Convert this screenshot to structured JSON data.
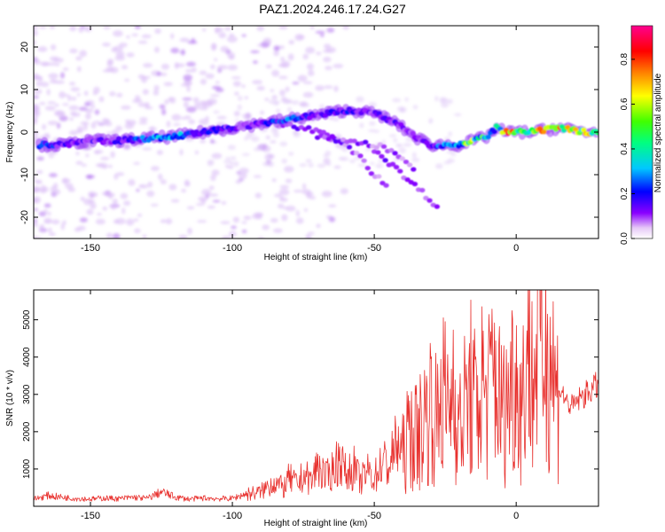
{
  "title": "PAZ1.2024.246.17.24.G27",
  "colors": {
    "snr_line": "#e8312e",
    "axis": "#000000",
    "spectrogram_low": "#e8c8f8",
    "spectrogram_colormap": [
      "#ffffff",
      "#e6c8f7",
      "#8a00ff",
      "#0000ff",
      "#00d9ff",
      "#00ff40",
      "#ffff00",
      "#ff8000",
      "#ff0000",
      "#ff00a0"
    ]
  },
  "chart_data": [
    {
      "type": "heatmap",
      "xlabel": "Height of straight line (km)",
      "ylabel": "Frequency (Hz)",
      "xlim": [
        -170,
        29
      ],
      "ylim": [
        -25,
        25
      ],
      "xticks": [
        -150,
        -100,
        -50,
        0
      ],
      "yticks": [
        20,
        10,
        0,
        -10,
        -20
      ],
      "colorbar": {
        "label": "Normalized spectral amplitude",
        "range": [
          0,
          0.95
        ],
        "ticks": [
          "0.0",
          "0.2",
          "0.4",
          "0.6",
          "0.8"
        ]
      },
      "main_trace": {
        "x": [
          -168,
          -160,
          -150,
          -140,
          -130,
          -120,
          -110,
          -100,
          -90,
          -80,
          -70,
          -62,
          -55,
          -48,
          -42,
          -36,
          -30,
          -25,
          -20,
          -15,
          -10,
          -7,
          -4,
          0,
          5,
          10,
          15,
          20,
          25,
          29
        ],
        "freq": [
          -3,
          -3,
          -2,
          -2,
          -1.5,
          -1,
          0,
          1,
          2,
          3,
          4,
          5,
          5,
          4,
          2,
          -1,
          -3,
          -3,
          -3,
          -2,
          -1,
          1,
          0,
          0,
          0,
          0.5,
          1,
          0.5,
          0,
          0
        ],
        "amplitude": [
          0.35,
          0.3,
          0.25,
          0.28,
          0.4,
          0.45,
          0.35,
          0.25,
          0.3,
          0.45,
          0.25,
          0.3,
          0.3,
          0.25,
          0.25,
          0.2,
          0.3,
          0.45,
          0.55,
          0.6,
          0.5,
          0.45,
          0.85,
          0.7,
          0.5,
          0.85,
          0.8,
          0.75,
          0.7,
          0.7
        ]
      },
      "secondary_traces": [
        {
          "x": [
            -90,
            -80,
            -72,
            -66,
            -60,
            -55,
            -50,
            -45
          ],
          "freq": [
            2.5,
            1.5,
            0.5,
            -1,
            -3,
            -6,
            -10,
            -13
          ]
        },
        {
          "x": [
            -50,
            -45,
            -40,
            -35,
            -30,
            -27
          ],
          "freq": [
            -4,
            -7,
            -10,
            -13,
            -16,
            -18
          ]
        },
        {
          "x": [
            -70,
            -60,
            -50,
            -45,
            -40,
            -35
          ],
          "freq": [
            -1,
            -2,
            -3,
            -4,
            -6,
            -9
          ]
        }
      ]
    },
    {
      "type": "line",
      "xlabel": "Height of straight line (km)",
      "ylabel": "SNR (10 * v/v)",
      "xlim": [
        -170,
        29
      ],
      "ylim": [
        0,
        5800
      ],
      "xticks": [
        -150,
        -100,
        -50,
        0
      ],
      "yticks": [
        1000,
        2000,
        3000,
        4000,
        5000
      ],
      "series": [
        {
          "x": [
            -170,
            -165,
            -160,
            -155,
            -150,
            -145,
            -140,
            -135,
            -130,
            -125,
            -120,
            -115,
            -110,
            -105,
            -100,
            -95,
            -90,
            -87,
            -85,
            -82,
            -80,
            -77,
            -75,
            -72,
            -70,
            -67,
            -65,
            -62,
            -60,
            -57,
            -55,
            -52,
            -50,
            -47,
            -45,
            -42,
            -40,
            -37,
            -35,
            -32,
            -30,
            -28,
            -26,
            -24,
            -22,
            -20,
            -18,
            -16,
            -14,
            -12,
            -10,
            -8,
            -6,
            -4,
            -2,
            0,
            2,
            4,
            6,
            8,
            10,
            12,
            14,
            16,
            18,
            20,
            22,
            24,
            26,
            29
          ],
          "y": [
            200,
            300,
            250,
            220,
            200,
            230,
            210,
            250,
            220,
            400,
            250,
            200,
            230,
            210,
            220,
            350,
            400,
            600,
            700,
            500,
            800,
            600,
            900,
            700,
            1200,
            800,
            1000,
            1400,
            900,
            1100,
            700,
            1000,
            800,
            1300,
            1100,
            1800,
            1500,
            2200,
            2000,
            2600,
            3000,
            2400,
            3500,
            2600,
            3800,
            2200,
            2900,
            3400,
            2700,
            3600,
            3000,
            4200,
            3100,
            2700,
            3600,
            3800,
            2900,
            4800,
            3500,
            5500,
            4400,
            4700,
            3300,
            3100,
            2800,
            2700,
            2900,
            3000,
            3150,
            3300
          ]
        }
      ]
    }
  ]
}
